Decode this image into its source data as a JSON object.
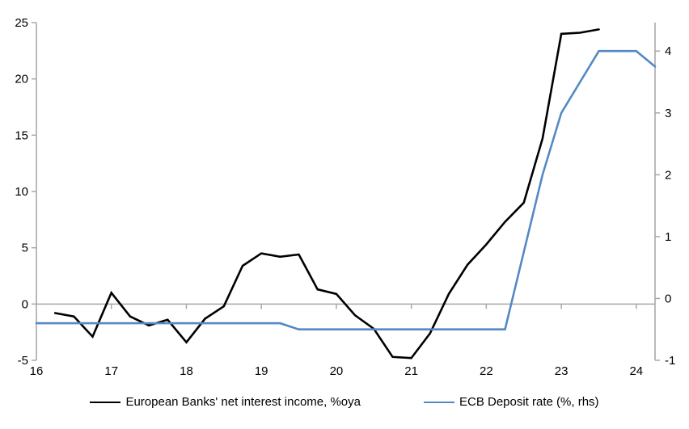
{
  "chart_data": {
    "type": "line",
    "title": "",
    "x_axis": {
      "min": 16,
      "max": 24.25,
      "tick_values": [
        16,
        17,
        18,
        19,
        20,
        21,
        22,
        23,
        24
      ],
      "tick_labels": [
        "16",
        "17",
        "18",
        "19",
        "20",
        "21",
        "22",
        "23",
        "24"
      ]
    },
    "y_axis_left": {
      "min": -5,
      "max": 25,
      "tick_values": [
        -5,
        0,
        5,
        10,
        15,
        20,
        25
      ],
      "tick_labels": [
        "-5",
        "0",
        "5",
        "10",
        "15",
        "20",
        "25"
      ]
    },
    "y_axis_right": {
      "min": -1,
      "max": 4.46,
      "tick_values": [
        -1,
        0,
        1,
        2,
        3,
        4
      ],
      "tick_labels": [
        "-1",
        "0",
        "1",
        "2",
        "3",
        "4"
      ]
    },
    "grid": "zero-line-only",
    "legend_position": "bottom",
    "series": [
      {
        "name": "European Banks' net interest income, %oya",
        "axis": "left",
        "color": "#000000",
        "x_start": 16.25,
        "x_step": 0.25,
        "values": [
          -0.8,
          -1.1,
          -2.9,
          1.0,
          -1.1,
          -1.9,
          -1.4,
          -3.4,
          -1.3,
          -0.2,
          3.4,
          4.5,
          4.2,
          4.4,
          1.3,
          0.9,
          -1.0,
          -2.2,
          -4.7,
          -4.8,
          -2.6,
          0.9,
          3.5,
          5.3,
          7.3,
          9.0,
          14.7,
          24.0,
          24.1,
          24.4
        ]
      },
      {
        "name": "ECB Deposit rate (%, rhs)",
        "axis": "right",
        "color": "#5389c4",
        "x_start": 16.0,
        "x_step": 0.25,
        "values": [
          -0.4,
          -0.4,
          -0.4,
          -0.4,
          -0.4,
          -0.4,
          -0.4,
          -0.4,
          -0.4,
          -0.4,
          -0.4,
          -0.4,
          -0.4,
          -0.4,
          -0.5,
          -0.5,
          -0.5,
          -0.5,
          -0.5,
          -0.5,
          -0.5,
          -0.5,
          -0.5,
          -0.5,
          -0.5,
          -0.5,
          0.75,
          2.0,
          3.0,
          3.5,
          4.0,
          4.0,
          4.0,
          3.75
        ]
      }
    ]
  },
  "legend": {
    "series1_label": "European Banks' net interest income, %oya",
    "series2_label": "ECB Deposit rate (%, rhs)"
  },
  "colors": {
    "axis_line": "#a8a8a8",
    "zero_line": "#a8a8a8",
    "background": "#ffffff",
    "nii_line": "#000000",
    "ecb_line": "#5389c4"
  }
}
